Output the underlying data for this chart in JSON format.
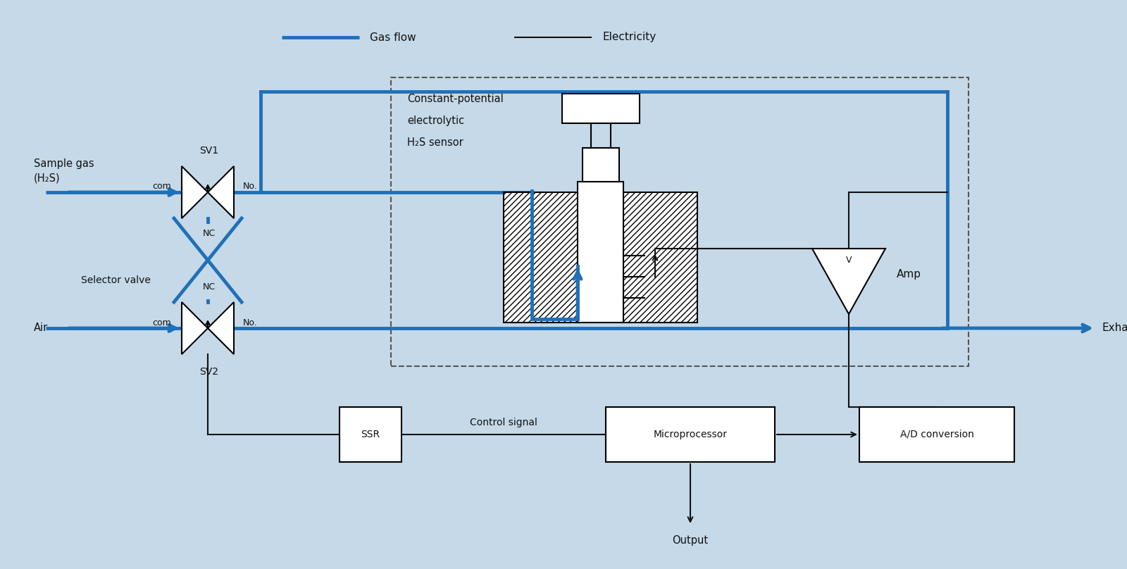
{
  "bg_color": "#c5d9e8",
  "gas_flow_color": "#2070b8",
  "elec_color": "#111111",
  "box_fill": "#ffffff",
  "lc": "#111111",
  "figsize": [
    16.0,
    8.08
  ],
  "dpi": 100,
  "legend_gas_flow": "Gas flow",
  "legend_electricity": "Electricity",
  "sample_gas": "Sample gas\n(H₂S)",
  "sv1": "SV1",
  "sv2": "SV2",
  "nc1": "NC",
  "nc2": "NC",
  "com": "com",
  "no": "No.",
  "selector_valve": "Selector valve",
  "air": "Air",
  "sensor_title_line1": "Constant-potential",
  "sensor_title_line2": "electrolytic",
  "sensor_title_line3": "H₂S sensor",
  "amp_label": "Amp",
  "v_label": "V",
  "exhaust_label": "Exhaust",
  "microprocessor_label": "Microprocessor",
  "ad_label": "A/D conversion",
  "ssr_label": "SSR",
  "control_signal_label": "Control signal",
  "output_label": "Output"
}
